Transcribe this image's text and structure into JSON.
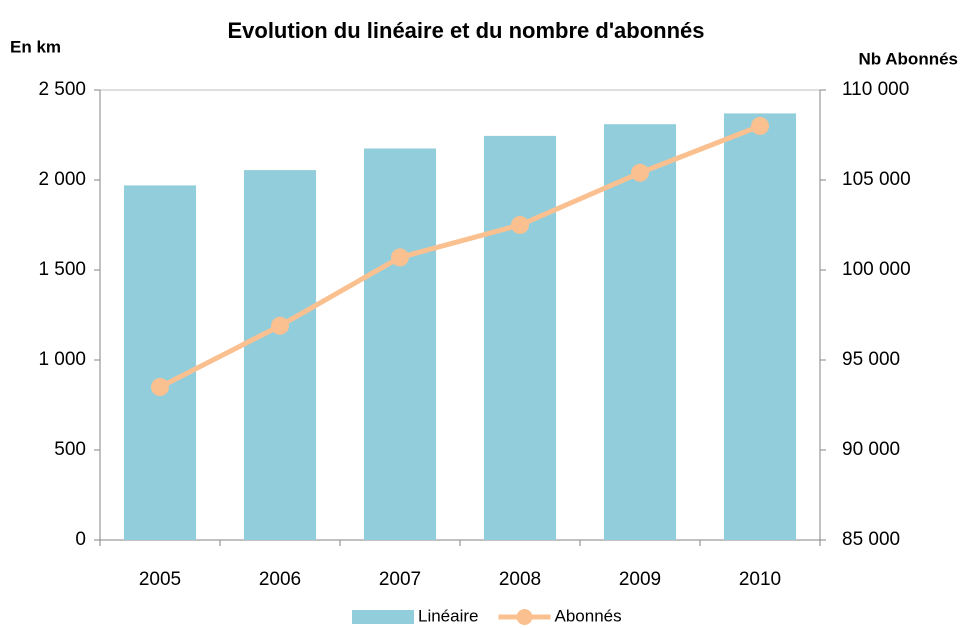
{
  "chart_data": {
    "type": "bar",
    "title": "Evolution du linéaire et du nombre d'abonnés",
    "y_label": "En km",
    "y2_label": "Nb Abonnés",
    "categories": [
      "2005",
      "2006",
      "2007",
      "2008",
      "2009",
      "2010"
    ],
    "series": [
      {
        "name": "Linéaire",
        "type": "bar",
        "color": "#92cddc",
        "values": [
          1970,
          2055,
          2175,
          2245,
          2310,
          2370
        ]
      },
      {
        "name": "Abonnés",
        "type": "line",
        "axis": "y2",
        "color": "#fac090",
        "values": [
          93500,
          96900,
          100700,
          102500,
          105400,
          108000
        ]
      }
    ],
    "ylim": [
      0,
      2500
    ],
    "yticks": [
      0,
      500,
      {
        "value": 1000,
        "label": "1 000"
      },
      {
        "value": 1500,
        "label": "1 500"
      },
      {
        "value": 2000,
        "label": "2 000"
      },
      {
        "value": 2500,
        "label": "2 500"
      }
    ],
    "y2lim": [
      85000,
      110000
    ],
    "y2ticks": [
      {
        "value": 85000,
        "label": "85 000"
      },
      {
        "value": 90000,
        "label": "90 000"
      },
      {
        "value": 95000,
        "label": "95 000"
      },
      {
        "value": 100000,
        "label": "100 000"
      },
      {
        "value": 105000,
        "label": "105 000"
      },
      {
        "value": 110000,
        "label": "110 000"
      }
    ],
    "grid": false,
    "legend": "bottom"
  }
}
